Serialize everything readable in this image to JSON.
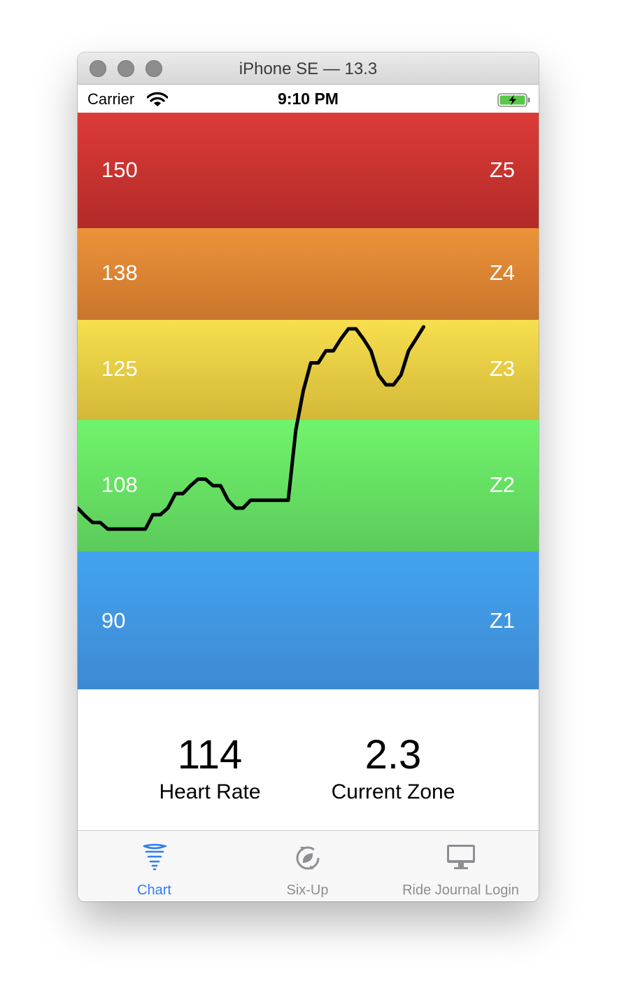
{
  "window": {
    "title": "iPhone SE — 13.3"
  },
  "status_bar": {
    "carrier": "Carrier",
    "time": "9:10 PM"
  },
  "zones": [
    {
      "hr": "150",
      "name": "Z5",
      "color_top": "#dd3b37",
      "color_bottom": "#b22b28"
    },
    {
      "hr": "138",
      "name": "Z4",
      "color_top": "#ec9339",
      "color_bottom": "#c9752c"
    },
    {
      "hr": "125",
      "name": "Z3",
      "color_top": "#f7df4e",
      "color_bottom": "#d3b838"
    },
    {
      "hr": "108",
      "name": "Z2",
      "color_top": "#70f46c",
      "color_bottom": "#5ccb5a"
    },
    {
      "hr": "90",
      "name": "Z1",
      "color_top": "#43a3f0",
      "color_bottom": "#3d8ad1"
    }
  ],
  "chart_data": {
    "type": "line",
    "ylabel": "",
    "series": [
      {
        "values": [
          2.33,
          2.27,
          2.22,
          2.22,
          2.17,
          2.17,
          2.17,
          2.17,
          2.17,
          2.17,
          2.28,
          2.28,
          2.33,
          2.44,
          2.44,
          2.5,
          2.55,
          2.55,
          2.5,
          2.5,
          2.39,
          2.33,
          2.33,
          2.39,
          2.39,
          2.39,
          2.39,
          2.39,
          2.39,
          2.92,
          3.29,
          3.57,
          3.57,
          3.69,
          3.69,
          3.81,
          3.91,
          3.91,
          3.81,
          3.69,
          3.45,
          3.35,
          3.35,
          3.45,
          3.69,
          3.81,
          3.93
        ]
      }
    ]
  },
  "stats": {
    "heart_rate": {
      "value": "114",
      "label": "Heart Rate"
    },
    "current_zone": {
      "value": "2.3",
      "label": "Current Zone"
    }
  },
  "tabs": [
    {
      "label": "Chart",
      "icon": "tornado-icon",
      "selected": true
    },
    {
      "label": "Six-Up",
      "icon": "cycle-leaf-icon",
      "selected": false
    },
    {
      "label": "Ride Journal Login",
      "icon": "desktop-icon",
      "selected": false
    }
  ],
  "colors": {
    "accent": "#2f7df6",
    "tab_inactive": "#8e8e93",
    "line": "#000000"
  }
}
